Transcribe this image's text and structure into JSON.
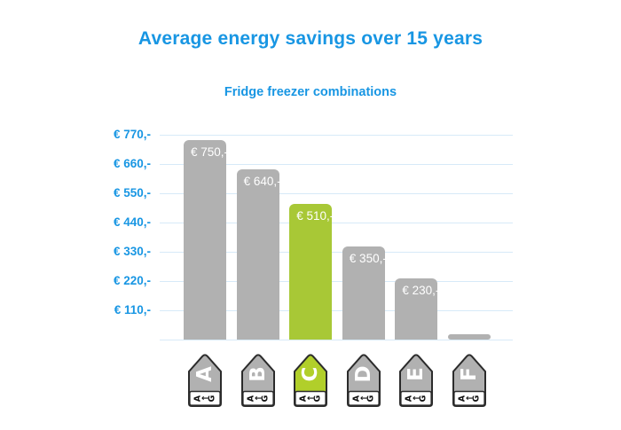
{
  "title": "Average energy savings over 15 years",
  "subtitle": "Fridge freezer combinations",
  "colors": {
    "accent_blue": "#1896e3",
    "gridline": "#d7eaf8",
    "bar_gray": "#b1b1b1",
    "bar_green": "#a8c836",
    "icon_gray": "#b1b1b1",
    "icon_green": "#b1cf2a",
    "icon_outline": "#2b2b2b",
    "bar_label_color": "#ffffff",
    "icon_scale_text_color": "#111111"
  },
  "chart_data": {
    "type": "bar",
    "title": "Average energy savings over 15 years",
    "subtitle": "Fridge freezer combinations",
    "xlabel": "",
    "ylabel": "",
    "categories": [
      "A",
      "B",
      "C",
      "D",
      "E",
      "F"
    ],
    "values": [
      750,
      640,
      510,
      350,
      230,
      20
    ],
    "bar_labels": [
      "€ 750,-",
      "€ 640,-",
      "€ 510,-",
      "€ 350,-",
      "€ 230,-",
      ""
    ],
    "highlight_category": "C",
    "highlight_index": 2,
    "y_ticks": [
      770,
      660,
      550,
      440,
      330,
      220,
      110
    ],
    "y_tick_labels": [
      "€ 770,-",
      "€ 660,-",
      "€ 550,-",
      "€ 440,-",
      "€ 330,-",
      "€ 220,-",
      "€ 110,-"
    ],
    "ylim": [
      0,
      770
    ],
    "grid": true,
    "legend": false,
    "x_axis_icons": {
      "type": "eu-energy-class-tag",
      "scale_text": "A←G",
      "letters_rotation_deg": -90
    }
  }
}
